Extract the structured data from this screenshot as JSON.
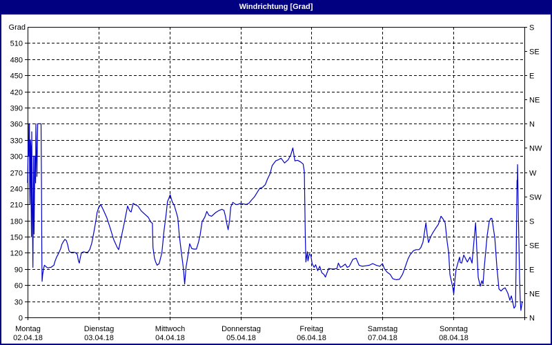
{
  "window": {
    "title": "Windrichtung [Grad]"
  },
  "colors": {
    "title_bar": "#000080",
    "title_text": "#ffffff",
    "window_border": "#000080",
    "plot_background": "#ffffff",
    "line": "#0000cd",
    "grid": "#000000",
    "axis_text": "#000000"
  },
  "chart_data": {
    "type": "line",
    "title": "Windrichtung [Grad]",
    "y_left_unit_label": "Grad",
    "ylim": [
      0,
      540
    ],
    "y_left_tick_step": 30,
    "y_left_ticks": [
      0,
      30,
      60,
      90,
      120,
      150,
      180,
      210,
      240,
      270,
      300,
      330,
      360,
      390,
      420,
      450,
      480,
      510
    ],
    "y_right_tick_step": 45,
    "y_right_tick_values": [
      0,
      45,
      90,
      135,
      180,
      225,
      270,
      315,
      360,
      405,
      450,
      495,
      540
    ],
    "y_right_tick_labels": [
      "N",
      "NE",
      "E",
      "SE",
      "S",
      "SW",
      "W",
      "NW",
      "N",
      "NE",
      "E",
      "SE",
      "S"
    ],
    "x_total_hours": 168,
    "grid": "dashed",
    "days": [
      {
        "name": "Montag",
        "date": "02.04.18"
      },
      {
        "name": "Dienstag",
        "date": "03.04.18"
      },
      {
        "name": "Mittwoch",
        "date": "04.04.18"
      },
      {
        "name": "Donnerstag",
        "date": "05.04.18"
      },
      {
        "name": "Freitag",
        "date": "06.04.18"
      },
      {
        "name": "Samstag",
        "date": "07.04.18"
      },
      {
        "name": "Sonntag",
        "date": "08.04.18"
      }
    ],
    "series": [
      {
        "name": "Windrichtung",
        "unit": "Grad",
        "points": [
          [
            0,
            250
          ],
          [
            0.2,
            330
          ],
          [
            0.35,
            300
          ],
          [
            0.45,
            360
          ],
          [
            0.6,
            360
          ],
          [
            0.7,
            250
          ],
          [
            0.8,
            210
          ],
          [
            0.95,
            330
          ],
          [
            1.1,
            318
          ],
          [
            1.15,
            240
          ],
          [
            1.3,
            150
          ],
          [
            1.4,
            345
          ],
          [
            1.6,
            200
          ],
          [
            1.8,
            93
          ],
          [
            2.0,
            300
          ],
          [
            2.2,
            155
          ],
          [
            2.45,
            300
          ],
          [
            2.7,
            250
          ],
          [
            2.8,
            360
          ],
          [
            3.15,
            262
          ],
          [
            3.4,
            360
          ],
          [
            4.1,
            360
          ],
          [
            4.55,
            360
          ],
          [
            4.7,
            250
          ],
          [
            4.8,
            120
          ],
          [
            4.9,
            67
          ],
          [
            5.1,
            80
          ],
          [
            5.4,
            90
          ],
          [
            5.7,
            97
          ],
          [
            6.1,
            95
          ],
          [
            6.5,
            93
          ],
          [
            7.0,
            92
          ],
          [
            7.5,
            93
          ],
          [
            7.9,
            93
          ],
          [
            8.4,
            95
          ],
          [
            8.9,
            97
          ],
          [
            9.3,
            105
          ],
          [
            9.8,
            112
          ],
          [
            10.3,
            117
          ],
          [
            10.7,
            122
          ],
          [
            11.2,
            128
          ],
          [
            11.6,
            136
          ],
          [
            12.1,
            141
          ],
          [
            12.6,
            145
          ],
          [
            13.1,
            143
          ],
          [
            13.5,
            136
          ],
          [
            14.0,
            124
          ],
          [
            14.4,
            121
          ],
          [
            15.2,
            121
          ],
          [
            15.8,
            121
          ],
          [
            16.3,
            120
          ],
          [
            16.8,
            117
          ],
          [
            17.2,
            105
          ],
          [
            17.5,
            101
          ],
          [
            17.7,
            108
          ],
          [
            18.2,
            120
          ],
          [
            18.9,
            122
          ],
          [
            19.6,
            121
          ],
          [
            20.3,
            121
          ],
          [
            21.0,
            126
          ],
          [
            21.7,
            138
          ],
          [
            22.4,
            158
          ],
          [
            23.1,
            180
          ],
          [
            23.5,
            195
          ],
          [
            24.0,
            204
          ],
          [
            24.7,
            210
          ],
          [
            25.6,
            200
          ],
          [
            26.8,
            185
          ],
          [
            28.0,
            165
          ],
          [
            29.1,
            145
          ],
          [
            30.3,
            130
          ],
          [
            30.8,
            126
          ],
          [
            31.7,
            150
          ],
          [
            32.6,
            173
          ],
          [
            33.8,
            207
          ],
          [
            34.5,
            198
          ],
          [
            35.0,
            196
          ],
          [
            35.7,
            212
          ],
          [
            36.6,
            209
          ],
          [
            37.3,
            207
          ],
          [
            38.4,
            198
          ],
          [
            39.6,
            192
          ],
          [
            40.8,
            186
          ],
          [
            41.7,
            177
          ],
          [
            42.2,
            175
          ],
          [
            42.4,
            130
          ],
          [
            42.9,
            110
          ],
          [
            43.3,
            103
          ],
          [
            43.8,
            97
          ],
          [
            44.5,
            100
          ],
          [
            45.4,
            120
          ],
          [
            46.1,
            160
          ],
          [
            46.8,
            190
          ],
          [
            47.3,
            215
          ],
          [
            47.8,
            222
          ],
          [
            48.2,
            228
          ],
          [
            48.9,
            215
          ],
          [
            49.6,
            208
          ],
          [
            50.3,
            195
          ],
          [
            50.8,
            185
          ],
          [
            51.3,
            152
          ],
          [
            52.0,
            120
          ],
          [
            52.7,
            90
          ],
          [
            53.1,
            62
          ],
          [
            53.6,
            94
          ],
          [
            54.1,
            111
          ],
          [
            54.8,
            137
          ],
          [
            55.5,
            128
          ],
          [
            56.2,
            127
          ],
          [
            57.1,
            127
          ],
          [
            57.8,
            140
          ],
          [
            58.3,
            152
          ],
          [
            59.0,
            178
          ],
          [
            59.9,
            186
          ],
          [
            60.6,
            197
          ],
          [
            61.3,
            190
          ],
          [
            62.2,
            188
          ],
          [
            63.6,
            195
          ],
          [
            64.8,
            199
          ],
          [
            65.7,
            201
          ],
          [
            66.4,
            199
          ],
          [
            66.9,
            188
          ],
          [
            67.3,
            176
          ],
          [
            67.8,
            163
          ],
          [
            68.3,
            180
          ],
          [
            68.7,
            205
          ],
          [
            69.4,
            214
          ],
          [
            70.4,
            210
          ],
          [
            71.1,
            210
          ],
          [
            72.0,
            212
          ],
          [
            72.9,
            211
          ],
          [
            73.9,
            210
          ],
          [
            74.8,
            212
          ],
          [
            75.7,
            218
          ],
          [
            76.7,
            224
          ],
          [
            77.6,
            232
          ],
          [
            78.5,
            240
          ],
          [
            79.5,
            242
          ],
          [
            80.4,
            247
          ],
          [
            81.1,
            257
          ],
          [
            82.0,
            267
          ],
          [
            82.7,
            282
          ],
          [
            83.9,
            291
          ],
          [
            84.8,
            293
          ],
          [
            85.7,
            296
          ],
          [
            86.9,
            287
          ],
          [
            88.1,
            293
          ],
          [
            89.0,
            302
          ],
          [
            89.7,
            315
          ],
          [
            90.4,
            291
          ],
          [
            91.3,
            292
          ],
          [
            92.3,
            289
          ],
          [
            93.2,
            285
          ],
          [
            93.6,
            270
          ],
          [
            93.9,
            155
          ],
          [
            94.1,
            103
          ],
          [
            94.6,
            122
          ],
          [
            94.8,
            105
          ],
          [
            95.3,
            118
          ],
          [
            95.8,
            115
          ],
          [
            96.2,
            100
          ],
          [
            96.9,
            93
          ],
          [
            97.4,
            98
          ],
          [
            98.1,
            87
          ],
          [
            98.8,
            95
          ],
          [
            99.5,
            83
          ],
          [
            100.2,
            80
          ],
          [
            100.7,
            75
          ],
          [
            101.4,
            85
          ],
          [
            101.8,
            91
          ],
          [
            102.8,
            90
          ],
          [
            103.7,
            90
          ],
          [
            104.6,
            91
          ],
          [
            105.1,
            101
          ],
          [
            105.8,
            93
          ],
          [
            106.5,
            95
          ],
          [
            107.4,
            99
          ],
          [
            108.1,
            93
          ],
          [
            108.8,
            95
          ],
          [
            110.0,
            108
          ],
          [
            111.1,
            110
          ],
          [
            112.1,
            97
          ],
          [
            113.2,
            95
          ],
          [
            114.4,
            96
          ],
          [
            115.6,
            97
          ],
          [
            116.7,
            100
          ],
          [
            117.9,
            97
          ],
          [
            119.1,
            95
          ],
          [
            120.0,
            100
          ],
          [
            120.7,
            90
          ],
          [
            121.6,
            84
          ],
          [
            122.6,
            80
          ],
          [
            123.5,
            72
          ],
          [
            124.7,
            70
          ],
          [
            125.8,
            71
          ],
          [
            126.8,
            80
          ],
          [
            127.7,
            94
          ],
          [
            128.6,
            108
          ],
          [
            129.3,
            116
          ],
          [
            130.5,
            124
          ],
          [
            131.4,
            126
          ],
          [
            132.4,
            126
          ],
          [
            133.0,
            130
          ],
          [
            133.7,
            140
          ],
          [
            134.7,
            176
          ],
          [
            135.1,
            155
          ],
          [
            135.6,
            139
          ],
          [
            136.3,
            150
          ],
          [
            137.0,
            157
          ],
          [
            137.9,
            165
          ],
          [
            138.9,
            173
          ],
          [
            139.8,
            188
          ],
          [
            140.5,
            183
          ],
          [
            141.2,
            176
          ],
          [
            141.9,
            140
          ],
          [
            142.4,
            120
          ],
          [
            142.8,
            80
          ],
          [
            143.3,
            68
          ],
          [
            143.8,
            55
          ],
          [
            144.1,
            43
          ],
          [
            144.5,
            70
          ],
          [
            144.9,
            89
          ],
          [
            145.6,
            103
          ],
          [
            146.1,
            112
          ],
          [
            146.3,
            102
          ],
          [
            146.8,
            101
          ],
          [
            147.5,
            116
          ],
          [
            148.7,
            103
          ],
          [
            149.6,
            112
          ],
          [
            150.3,
            101
          ],
          [
            151.0,
            145
          ],
          [
            151.5,
            176
          ],
          [
            151.9,
            127
          ],
          [
            152.4,
            74
          ],
          [
            153.1,
            58
          ],
          [
            153.6,
            68
          ],
          [
            154.0,
            62
          ],
          [
            154.5,
            97
          ],
          [
            155.4,
            152
          ],
          [
            156.1,
            178
          ],
          [
            156.6,
            184
          ],
          [
            157.0,
            184
          ],
          [
            158.0,
            148
          ],
          [
            158.7,
            94
          ],
          [
            159.4,
            53
          ],
          [
            160.1,
            49
          ],
          [
            160.8,
            53
          ],
          [
            161.5,
            55
          ],
          [
            162.4,
            45
          ],
          [
            163.1,
            32
          ],
          [
            163.6,
            40
          ],
          [
            164.5,
            17
          ],
          [
            165.0,
            21
          ],
          [
            165.2,
            100
          ],
          [
            165.5,
            255
          ],
          [
            165.6,
            240
          ],
          [
            165.7,
            284
          ],
          [
            166.0,
            180
          ],
          [
            166.4,
            70
          ],
          [
            166.6,
            31
          ],
          [
            166.8,
            13
          ],
          [
            167.2,
            27
          ],
          [
            167.5,
            29
          ]
        ]
      }
    ]
  }
}
